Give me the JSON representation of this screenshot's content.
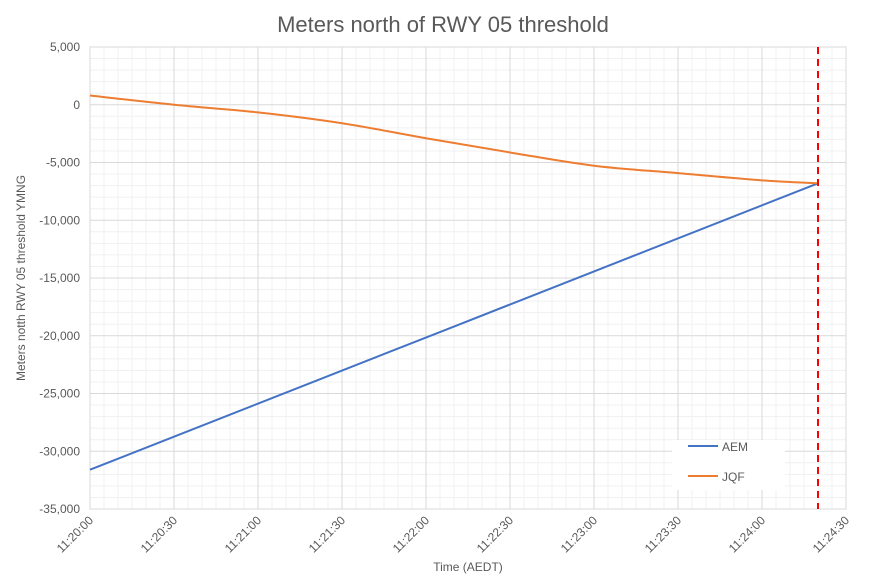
{
  "chart_data": {
    "type": "line",
    "title": "Meters north of RWY 05 threshold",
    "xlabel": "Time (AEDT)",
    "ylabel": "Meters notth RWY 05 threshold YMNG",
    "xlim_seconds": [
      0,
      270
    ],
    "x_start_time": "11:20:00",
    "ylim": [
      -35000,
      5000
    ],
    "grid": true,
    "minor_grid": true,
    "legend_position": "bottom-right",
    "x_ticks": [
      "11:20:00",
      "11:20:30",
      "11:21:00",
      "11:21:30",
      "11:22:00",
      "11:22:30",
      "11:23:00",
      "11:23:30",
      "11:24:00",
      "11:24:30"
    ],
    "y_ticks": [
      "5,000",
      "0",
      "-5,000",
      "-10,000",
      "-15,000",
      "-20,000",
      "-25,000",
      "-30,000",
      "-35,000"
    ],
    "y_tick_values": [
      5000,
      0,
      -5000,
      -10000,
      -15000,
      -20000,
      -25000,
      -30000,
      -35000
    ],
    "series": [
      {
        "name": "AEM",
        "color": "#4472C4",
        "x_seconds": [
          0,
          260
        ],
        "values": [
          -31600,
          -6800
        ]
      },
      {
        "name": "JQF",
        "color": "#ED7D31",
        "x_seconds": [
          0,
          30,
          60,
          90,
          120,
          150,
          180,
          210,
          240,
          260
        ],
        "values": [
          800,
          0,
          -660,
          -1600,
          -2900,
          -4130,
          -5280,
          -5920,
          -6550,
          -6800
        ]
      }
    ],
    "annotations": [
      {
        "type": "vertical-dashed-line",
        "x_seconds": 260,
        "color": "#FF0000"
      }
    ]
  }
}
